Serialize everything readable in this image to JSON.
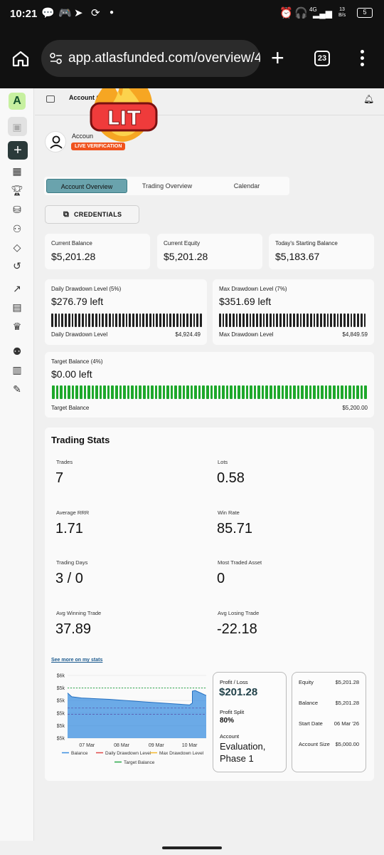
{
  "status": {
    "time": "10:21",
    "net": "4G",
    "speed_top": "13",
    "speed_bot": "B/s",
    "battery": "5"
  },
  "browser": {
    "url": "app.atlasfunded.com/overview/47",
    "tab_count": "23"
  },
  "topbar": {
    "breadcrumb": "Account Overview"
  },
  "badge": {
    "text": "LIT"
  },
  "account": {
    "name": "Accoun",
    "status_badge": "LIVE VERIFICATION"
  },
  "tabs": [
    "Account Overview",
    "Trading Overview",
    "Calendar"
  ],
  "credentials_label": "CREDENTIALS",
  "balances": [
    {
      "label": "Current Balance",
      "value": "$5,201.28"
    },
    {
      "label": "Current Equity",
      "value": "$5,201.28"
    },
    {
      "label": "Today's Starting Balance",
      "value": "$5,183.67"
    }
  ],
  "drawdowns": [
    {
      "label": "Daily Drawdown Level (5%)",
      "value": "$276.79 left",
      "sub_label": "Daily Drawdown Level",
      "sub_value": "$4,924.49"
    },
    {
      "label": "Max Drawdown Level (7%)",
      "value": "$351.69 left",
      "sub_label": "Max Drawdown Level",
      "sub_value": "$4,849.59"
    }
  ],
  "target": {
    "label": "Target Balance (4%)",
    "value": "$0.00 left",
    "sub_label": "Target Balance",
    "sub_value": "$5,200.00",
    "progress": 1.0
  },
  "stats": {
    "title": "Trading Stats",
    "items": [
      {
        "label": "Trades",
        "value": "7"
      },
      {
        "label": "Lots",
        "value": "0.58"
      },
      {
        "label": "Average RRR",
        "value": "1.71"
      },
      {
        "label": "Win Rate",
        "value": "85.71"
      },
      {
        "label": "Trading Days",
        "value": "3 / 0"
      },
      {
        "label": "Most Traded Asset",
        "value": "0"
      },
      {
        "label": "Avg Winning Trade",
        "value": "37.89"
      },
      {
        "label": "Avg Losing Trade",
        "value": "-22.18"
      }
    ],
    "see_more": "See more on my stats"
  },
  "chart_data": {
    "type": "area",
    "x": [
      "07 Mar",
      "08 Mar",
      "09 Mar",
      "10 Mar"
    ],
    "y_ticks": [
      "$6k",
      "$5k",
      "$5k",
      "$5k",
      "$5k",
      "$5k"
    ],
    "series": [
      {
        "name": "Balance",
        "color": "#3b8fe0"
      },
      {
        "name": "Daily Drawdown Level",
        "color": "#e04848"
      },
      {
        "name": "Max Drawdown Level",
        "color": "#f5b82e"
      },
      {
        "name": "Target Balance",
        "color": "#2aa84a"
      }
    ]
  },
  "pnl": {
    "label": "Profit / Loss",
    "value": "$201.28",
    "split_label": "Profit Split",
    "split_value": "80%",
    "account_label": "Account",
    "account_value_1": "Evaluation,",
    "account_value_2": "Phase 1"
  },
  "summary": [
    {
      "label": "Equity",
      "value": "$5,201.28"
    },
    {
      "label": "Balance",
      "value": "$5,201.28"
    },
    {
      "label": "Start Date",
      "value": "06 Mar '26"
    },
    {
      "label": "Account Size",
      "value": "$5,000.00"
    }
  ]
}
